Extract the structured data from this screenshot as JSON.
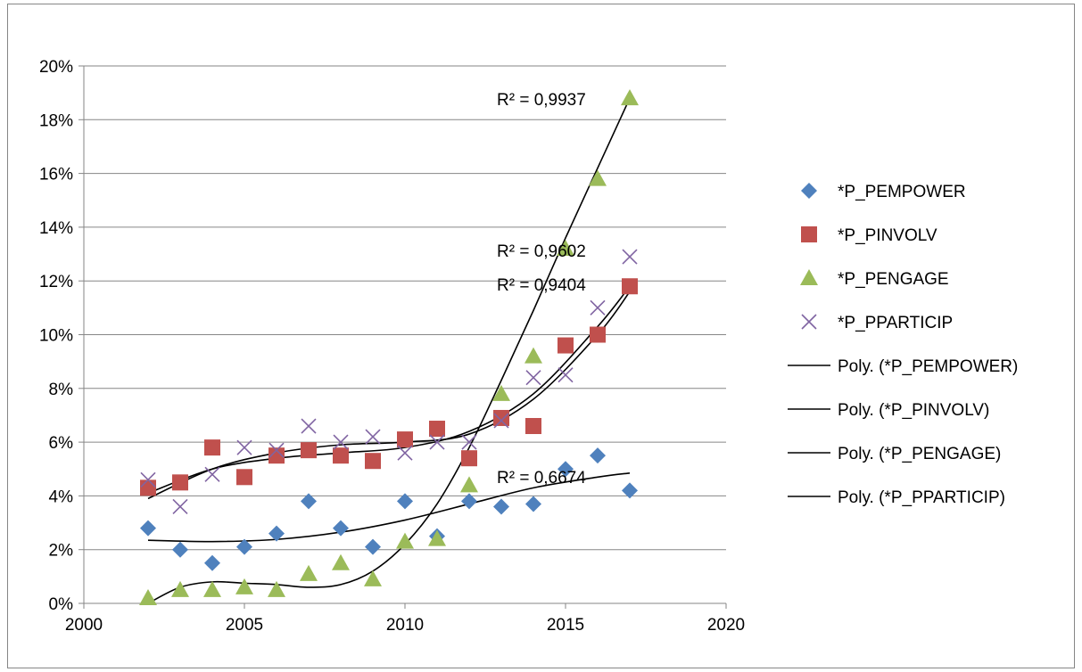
{
  "chart_data": {
    "type": "scatter",
    "title": "",
    "xlabel": "",
    "ylabel": "",
    "xlim": [
      2000,
      2020
    ],
    "ylim": [
      0,
      0.2
    ],
    "grid": "horizontal",
    "legend_position": "right",
    "x_tick_labels": [
      "2000",
      "2005",
      "2010",
      "2015",
      "2020"
    ],
    "y_tick_labels": [
      "0%",
      "2%",
      "4%",
      "6%",
      "8%",
      "10%",
      "12%",
      "14%",
      "16%",
      "18%",
      "20%"
    ],
    "series": [
      {
        "name": "*P_PEMPOWER",
        "marker": "diamond",
        "color": "#4F81BD",
        "x": [
          2002,
          2003,
          2004,
          2005,
          2006,
          2007,
          2008,
          2009,
          2010,
          2011,
          2012,
          2013,
          2014,
          2015,
          2016,
          2017
        ],
        "y": [
          0.028,
          0.02,
          0.015,
          0.021,
          0.026,
          0.038,
          0.028,
          0.021,
          0.038,
          0.025,
          0.038,
          0.036,
          0.037,
          0.05,
          0.055,
          0.042
        ]
      },
      {
        "name": "*P_PINVOLV",
        "marker": "square",
        "color": "#C0504D",
        "x": [
          2002,
          2003,
          2004,
          2005,
          2006,
          2007,
          2008,
          2009,
          2010,
          2011,
          2012,
          2013,
          2014,
          2015,
          2016,
          2017
        ],
        "y": [
          0.043,
          0.045,
          0.058,
          0.047,
          0.055,
          0.057,
          0.055,
          0.053,
          0.061,
          0.065,
          0.054,
          0.069,
          0.066,
          0.096,
          0.1,
          0.118
        ]
      },
      {
        "name": "*P_PENGAGE",
        "marker": "triangle",
        "color": "#9BBB59",
        "x": [
          2002,
          2003,
          2004,
          2005,
          2006,
          2007,
          2008,
          2009,
          2010,
          2011,
          2012,
          2013,
          2014,
          2015,
          2016,
          2017
        ],
        "y": [
          0.002,
          0.005,
          0.005,
          0.006,
          0.005,
          0.011,
          0.015,
          0.009,
          0.023,
          0.024,
          0.044,
          0.078,
          0.092,
          0.132,
          0.158,
          0.188
        ]
      },
      {
        "name": "*P_PPARTICIP",
        "marker": "x",
        "color": "#8064A2",
        "x": [
          2002,
          2003,
          2004,
          2005,
          2006,
          2007,
          2008,
          2009,
          2010,
          2011,
          2012,
          2013,
          2014,
          2015,
          2016,
          2017
        ],
        "y": [
          0.046,
          0.036,
          0.048,
          0.058,
          0.057,
          0.066,
          0.06,
          0.062,
          0.056,
          0.06,
          0.06,
          0.068,
          0.084,
          0.085,
          0.11,
          0.129
        ]
      }
    ],
    "trendlines": [
      {
        "name": "Poly. (*P_PEMPOWER)",
        "r2_label": "R² = 0,6674",
        "x": [
          2002,
          2004,
          2006,
          2008,
          2010,
          2012,
          2014,
          2016,
          2017
        ],
        "y": [
          0.0235,
          0.023,
          0.0238,
          0.0265,
          0.031,
          0.037,
          0.043,
          0.047,
          0.0485
        ]
      },
      {
        "name": "Poly. (*P_PINVOLV)",
        "r2_label": "R² = 0,9404",
        "x": [
          2002,
          2004,
          2006,
          2008,
          2010,
          2012,
          2014,
          2016,
          2017
        ],
        "y": [
          0.041,
          0.05,
          0.054,
          0.056,
          0.058,
          0.064,
          0.078,
          0.103,
          0.118
        ]
      },
      {
        "name": "Poly. (*P_PENGAGE)",
        "r2_label": "R² = 0,9937",
        "x": [
          2002,
          2003,
          2004,
          2005,
          2006,
          2007,
          2008,
          2009,
          2010,
          2011,
          2012,
          2013,
          2014,
          2015,
          2016,
          2017
        ],
        "y": [
          0.0,
          0.006,
          0.008,
          0.0075,
          0.007,
          0.006,
          0.007,
          0.012,
          0.022,
          0.037,
          0.058,
          0.083,
          0.109,
          0.136,
          0.162,
          0.188
        ]
      },
      {
        "name": "Poly. (*P_PPARTICIP)",
        "r2_label": "R² = 0,9602",
        "x": [
          2002,
          2004,
          2006,
          2008,
          2010,
          2012,
          2014,
          2016,
          2017
        ],
        "y": [
          0.039,
          0.05,
          0.056,
          0.059,
          0.06,
          0.063,
          0.076,
          0.1,
          0.116
        ]
      }
    ]
  }
}
